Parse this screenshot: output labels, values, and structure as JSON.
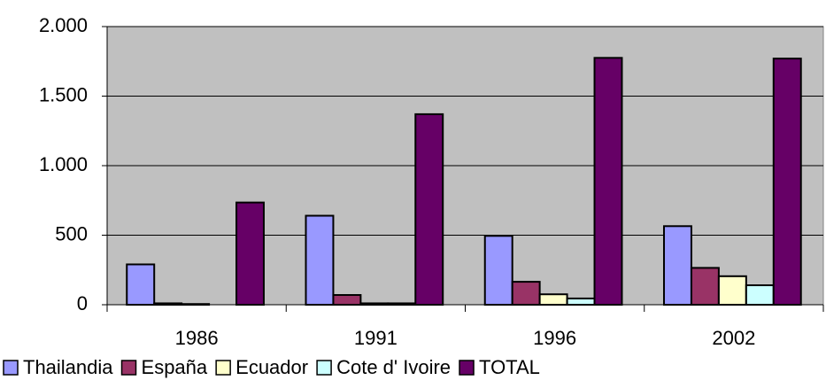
{
  "chart_data": {
    "type": "bar",
    "categories": [
      "1986",
      "1991",
      "1996",
      "2002"
    ],
    "series": [
      {
        "name": "Thailandia",
        "color": "#9999ff",
        "values": [
          290,
          640,
          495,
          565
        ]
      },
      {
        "name": "España",
        "color": "#993366",
        "values": [
          10,
          70,
          165,
          265
        ]
      },
      {
        "name": "Ecuador",
        "color": "#ffffcc",
        "values": [
          5,
          10,
          75,
          205
        ]
      },
      {
        "name": "Cote d' Ivoire",
        "color": "#ccffff",
        "values": [
          0,
          10,
          45,
          140
        ]
      },
      {
        "name": "TOTAL",
        "color": "#660066",
        "values": [
          735,
          1370,
          1775,
          1770
        ]
      }
    ],
    "ylim": [
      0,
      2000
    ],
    "yticks": [
      0,
      500,
      {
        "value": 1000,
        "label": "1.000"
      },
      {
        "value": 1500,
        "label": "1.500"
      },
      {
        "value": 2000,
        "label": "2.000"
      }
    ],
    "grid": true,
    "plot_background": "#c0c0c0",
    "legend": "bottom"
  }
}
